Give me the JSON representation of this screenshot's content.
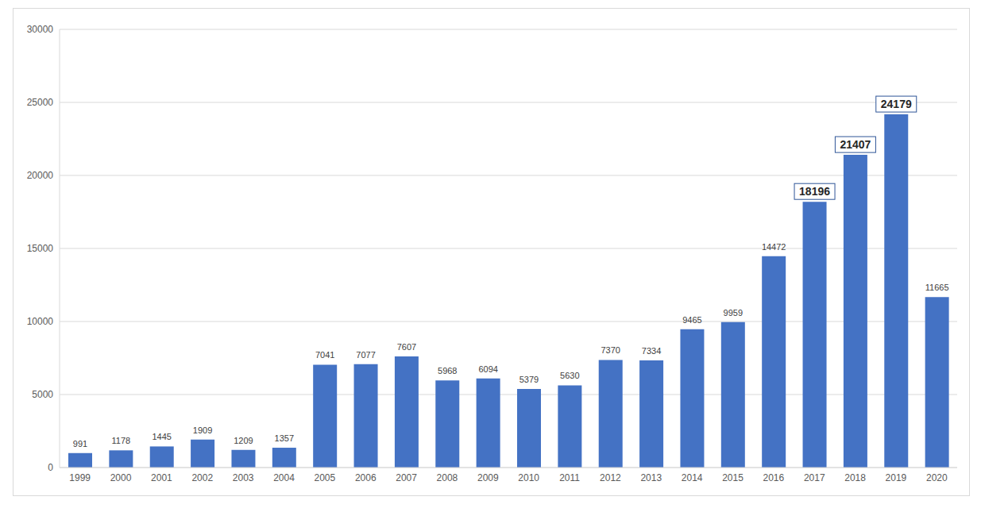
{
  "chart_data": {
    "type": "bar",
    "categories": [
      "1999",
      "2000",
      "2001",
      "2002",
      "2003",
      "2004",
      "2005",
      "2006",
      "2007",
      "2008",
      "2009",
      "2010",
      "2011",
      "2012",
      "2013",
      "2014",
      "2015",
      "2016",
      "2017",
      "2018",
      "2019",
      "2020"
    ],
    "values": [
      991,
      1178,
      1445,
      1909,
      1209,
      1357,
      7041,
      7077,
      7607,
      5968,
      6094,
      5379,
      5630,
      7370,
      7334,
      9465,
      9959,
      14472,
      18196,
      21407,
      24179,
      11665
    ],
    "color": "#4472c4",
    "ylim": [
      0,
      30000
    ],
    "yticks": [
      0,
      5000,
      10000,
      15000,
      20000,
      25000,
      30000
    ],
    "grid": true,
    "data_labels": true
  }
}
